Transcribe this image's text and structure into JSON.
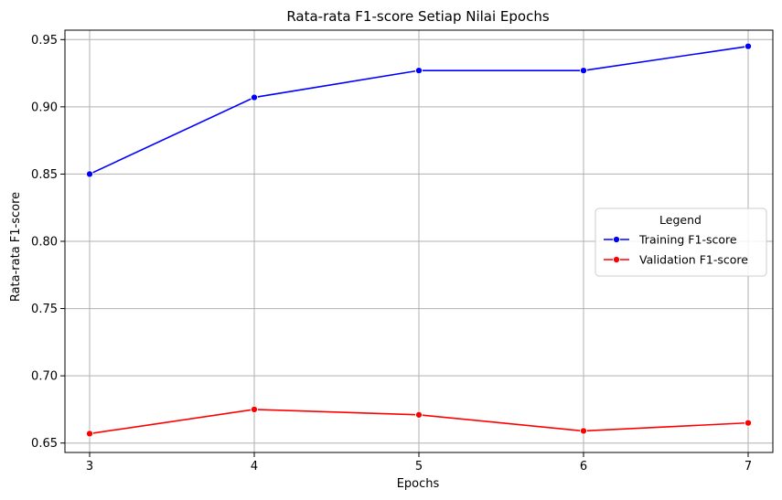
{
  "chart_data": {
    "type": "line",
    "title": "Rata-rata F1-score Setiap Nilai Epochs",
    "xlabel": "Epochs",
    "ylabel": "Rata-rata F1-score",
    "x": [
      3,
      4,
      5,
      6,
      7
    ],
    "xticks": [
      "3",
      "4",
      "5",
      "6",
      "7"
    ],
    "yticks": [
      0.65,
      0.7,
      0.75,
      0.8,
      0.85,
      0.9,
      0.95
    ],
    "ytick_labels": [
      "0.65",
      "0.70",
      "0.75",
      "0.80",
      "0.85",
      "0.90",
      "0.95"
    ],
    "xlim": [
      2.85,
      7.15
    ],
    "ylim": [
      0.643,
      0.957
    ],
    "grid": true,
    "series": [
      {
        "name": "Training F1-score",
        "color": "#0000ff",
        "values": [
          0.85,
          0.907,
          0.927,
          0.927,
          0.945
        ]
      },
      {
        "name": "Validation F1-score",
        "color": "#ff0000",
        "values": [
          0.657,
          0.675,
          0.671,
          0.659,
          0.665
        ]
      }
    ],
    "legend": {
      "title": "Legend",
      "placement": "center-right"
    }
  }
}
